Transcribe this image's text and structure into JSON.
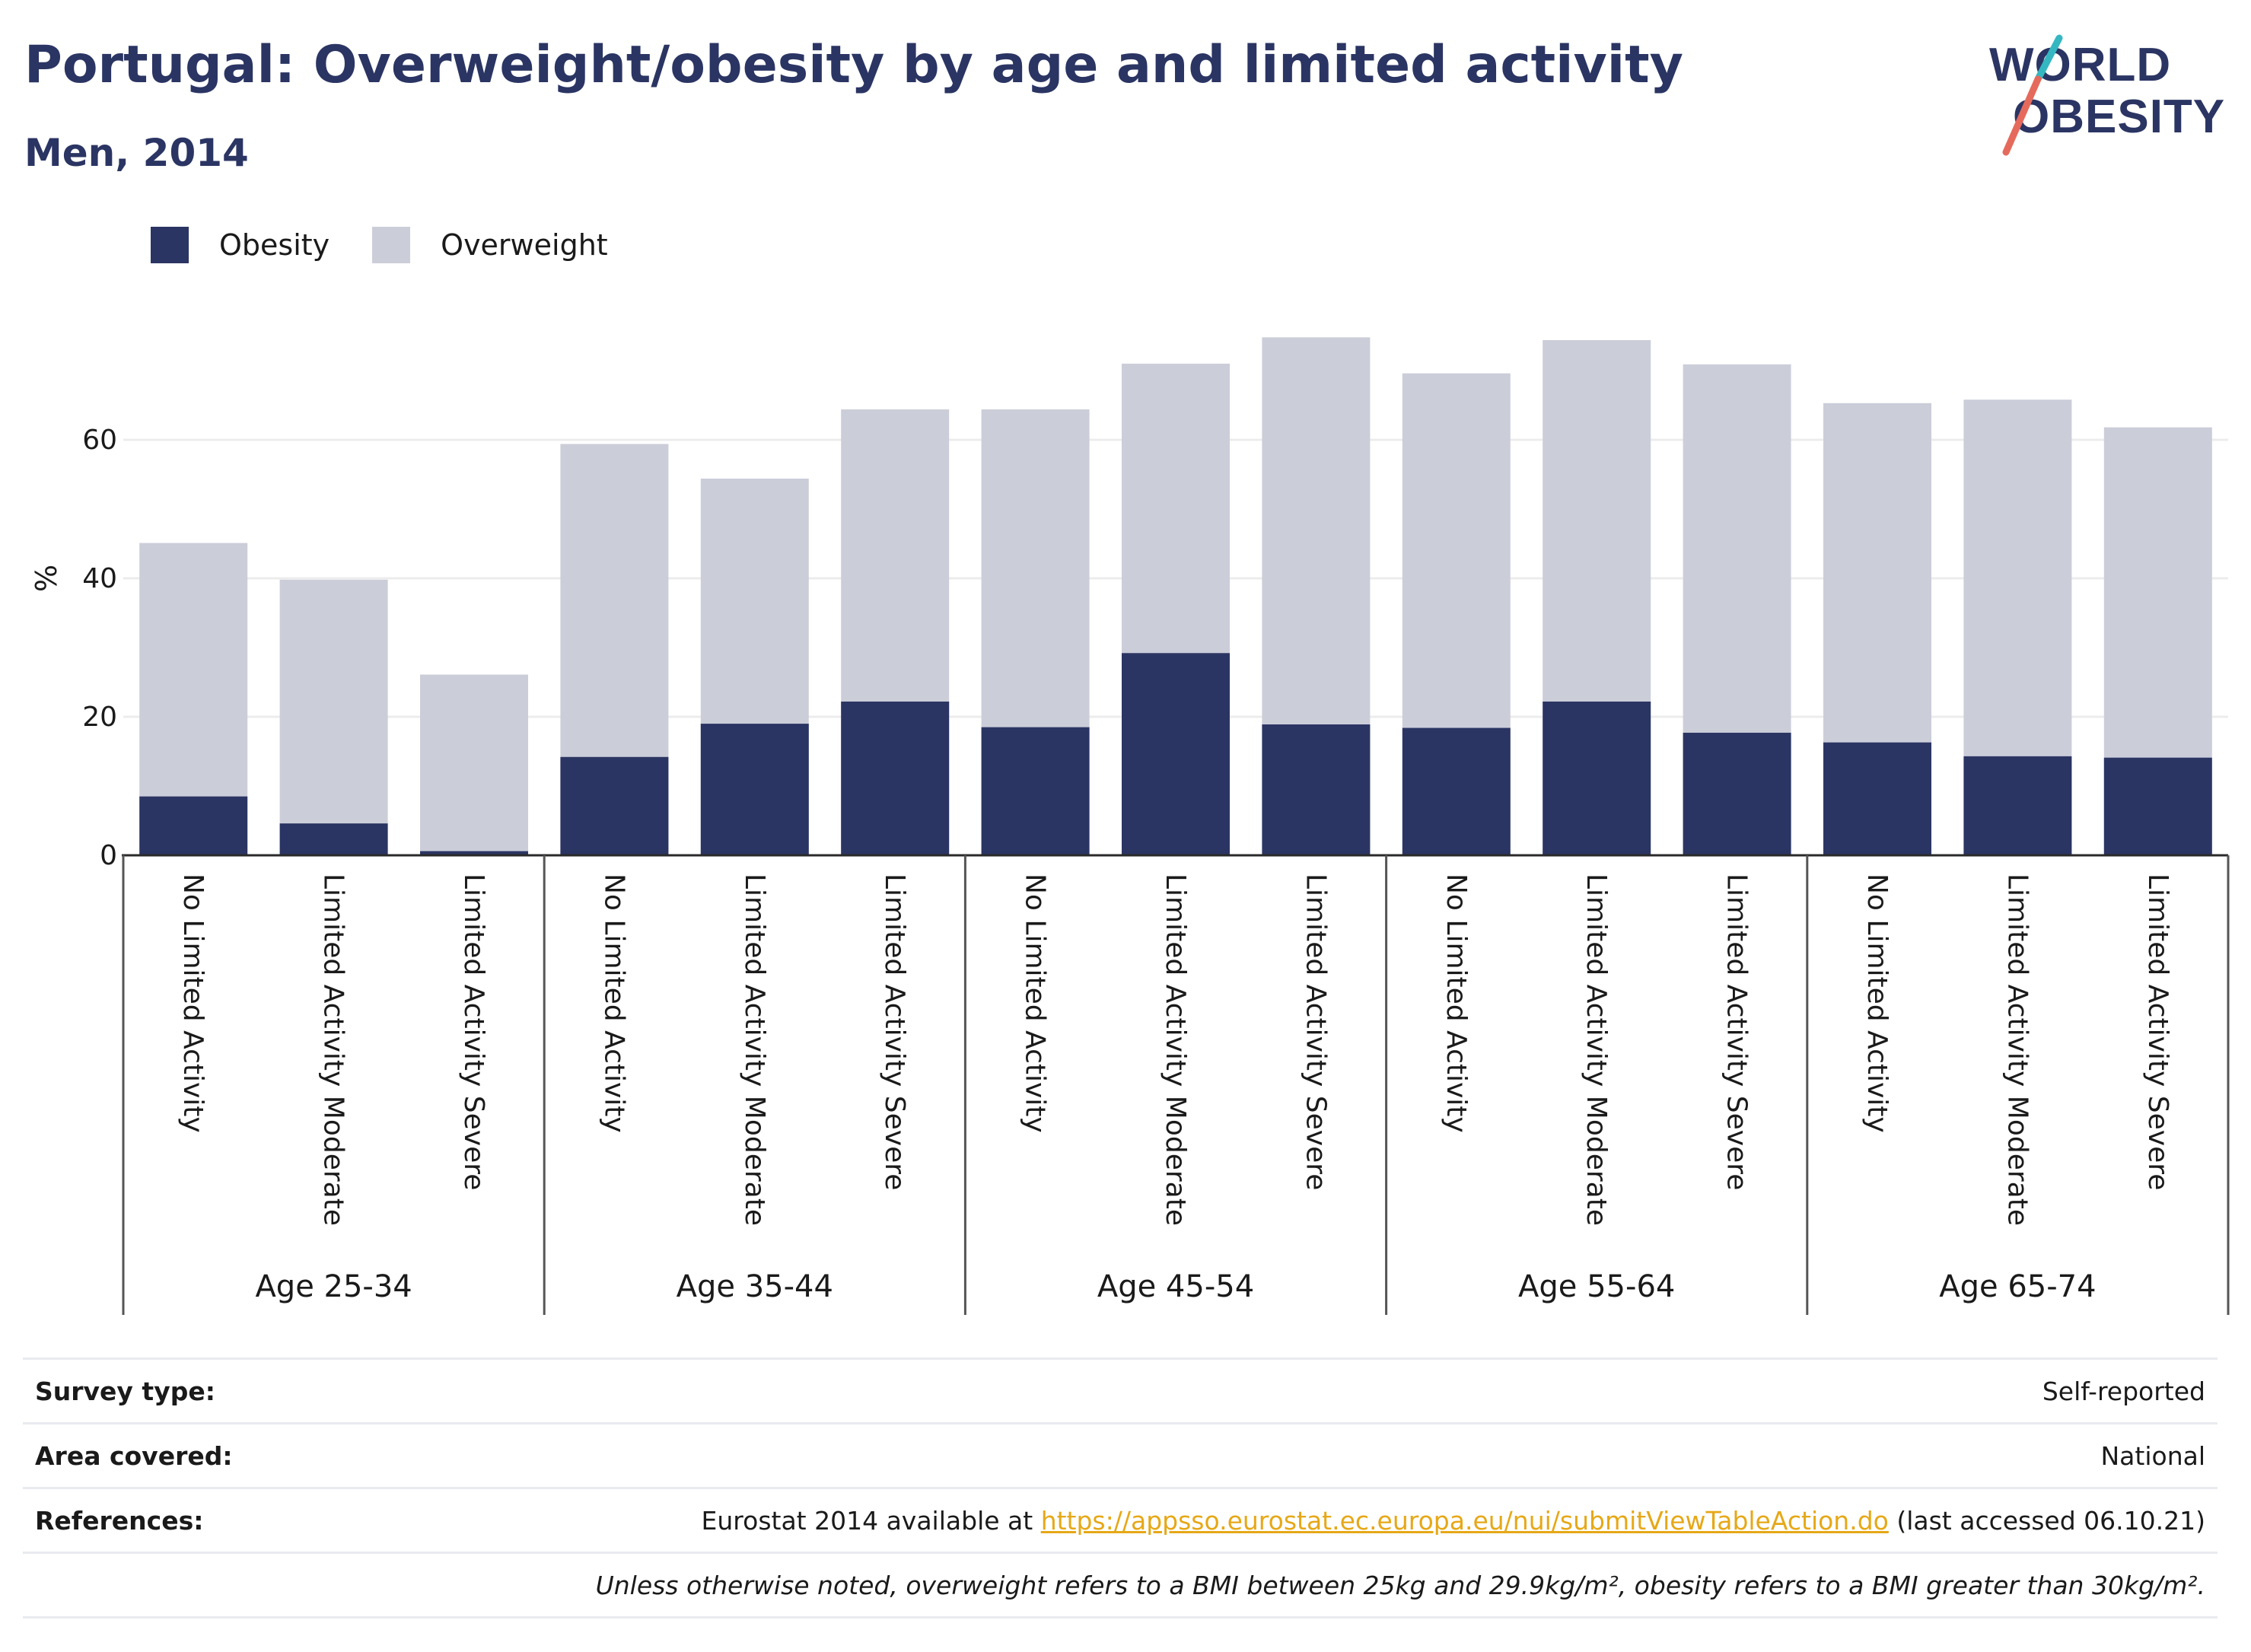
{
  "header": {
    "title": "Portugal: Overweight/obesity by age and limited activity",
    "subtitle": "Men, 2014"
  },
  "logo": {
    "line1": "WORLD",
    "line2": "OBESITY"
  },
  "colors": {
    "obesity": "#2b3563",
    "overweight": "#cbcdd9",
    "accent_teal": "#35b7c1",
    "accent_red": "#e56a5c",
    "link": "#e6a817"
  },
  "chart_data": {
    "type": "bar",
    "stacked": "overlay",
    "ylabel": "%",
    "ylim": [
      0,
      78
    ],
    "yticks": [
      0,
      20,
      40,
      60
    ],
    "grid": true,
    "legend_position": "top-left",
    "groups": [
      "Age 25-34",
      "Age 35-44",
      "Age 45-54",
      "Age 55-64",
      "Age 65-74"
    ],
    "categories": [
      "No Limited Activity",
      "Limited Activity Moderate",
      "Limited Activity Severe",
      "No Limited Activity",
      "Limited Activity Moderate",
      "Limited Activity Severe",
      "No Limited Activity",
      "Limited Activity Moderate",
      "Limited Activity Severe",
      "No Limited Activity",
      "Limited Activity Moderate",
      "Limited Activity Severe",
      "No Limited Activity",
      "Limited Activity Moderate",
      "Limited Activity Severe"
    ],
    "series": [
      {
        "name": "Obesity",
        "color": "#2b3563",
        "values": [
          8.5,
          4.6,
          0.6,
          14.2,
          19.0,
          22.2,
          18.5,
          29.2,
          18.9,
          18.4,
          22.2,
          17.7,
          16.3,
          14.3,
          14.1
        ]
      },
      {
        "name": "Overweight",
        "color": "#cbcdd9",
        "values": [
          45.1,
          39.8,
          26.1,
          59.4,
          54.4,
          64.4,
          64.4,
          71.0,
          74.8,
          69.6,
          74.4,
          70.9,
          65.3,
          65.8,
          61.8
        ]
      }
    ]
  },
  "info_table": {
    "survey_type_label": "Survey type:",
    "survey_type_value": "Self-reported",
    "area_label": "Area covered:",
    "area_value": "National",
    "references_label": "References:",
    "references_prefix": "Eurostat 2014 available at ",
    "references_link": "https://appsso.eurostat.ec.europa.eu/nui/submitViewTableAction.do",
    "references_suffix": " (last accessed 06.10.21)",
    "note": "Unless otherwise noted, overweight refers to a BMI between 25kg and 29.9kg/m², obesity refers to a BMI greater than 30kg/m²."
  }
}
